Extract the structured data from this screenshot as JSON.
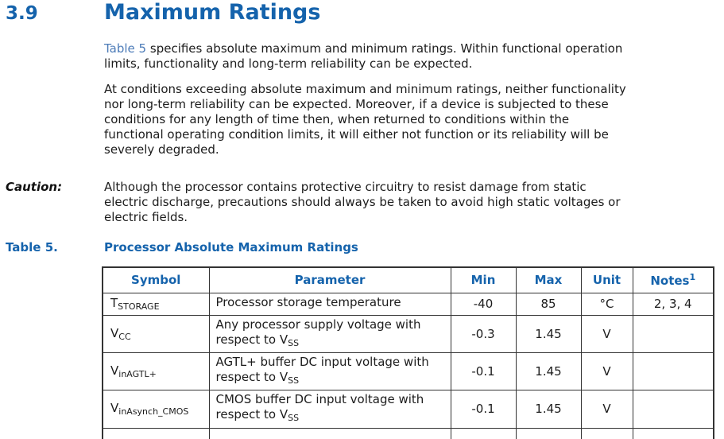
{
  "accent_color": "#1563ac",
  "link_color": "#4d7cb8",
  "section": {
    "number": "3.9",
    "title": "Maximum Ratings"
  },
  "paragraphs": {
    "p1_link": "Table 5",
    "p1_rest": " specifies absolute maximum and minimum ratings. Within functional operation\nlimits, functionality and long-term reliability can be expected.",
    "p2": "At conditions exceeding absolute maximum and minimum ratings, neither functionality\nnor long-term reliability can be expected. Moreover, if a device is subjected to these\nconditions for any length of time then, when returned to conditions within the\nfunctional operating condition limits, it will either not function or its reliability will be\nseverely degraded."
  },
  "caution": {
    "label": "Caution:",
    "text": "Although the processor contains protective circuitry to resist damage from static\nelectric discharge, precautions should always be taken to avoid high static voltages or\nelectric fields."
  },
  "table_caption": {
    "label": "Table 5.",
    "title": "Processor Absolute Maximum Ratings"
  },
  "table": {
    "headers": [
      "Symbol",
      "Parameter",
      "Min",
      "Max",
      "Unit",
      "Notes"
    ],
    "notes_header_sup": "1",
    "rows": [
      {
        "symbol": {
          "base": "T",
          "sub": "STORAGE"
        },
        "parameter": {
          "text": "Processor storage temperature",
          "sub": ""
        },
        "min": "-40",
        "max": "85",
        "unit": "°C",
        "notes": "2, 3, 4"
      },
      {
        "symbol": {
          "base": "V",
          "sub": "CC"
        },
        "parameter": {
          "text": "Any processor supply voltage with respect to V",
          "sub": "SS"
        },
        "min": "-0.3",
        "max": "1.45",
        "unit": "V",
        "notes": ""
      },
      {
        "symbol": {
          "base": "V",
          "sub": "inAGTL+"
        },
        "parameter": {
          "text": "AGTL+ buffer DC input voltage with respect to V",
          "sub": "SS"
        },
        "min": "-0.1",
        "max": "1.45",
        "unit": "V",
        "notes": ""
      },
      {
        "symbol": {
          "base": "V",
          "sub": "inAsynch_CMOS"
        },
        "parameter": {
          "text": "CMOS buffer DC input voltage with respect to V",
          "sub": "SS"
        },
        "min": "-0.1",
        "max": "1.45",
        "unit": "V",
        "notes": ""
      }
    ]
  }
}
